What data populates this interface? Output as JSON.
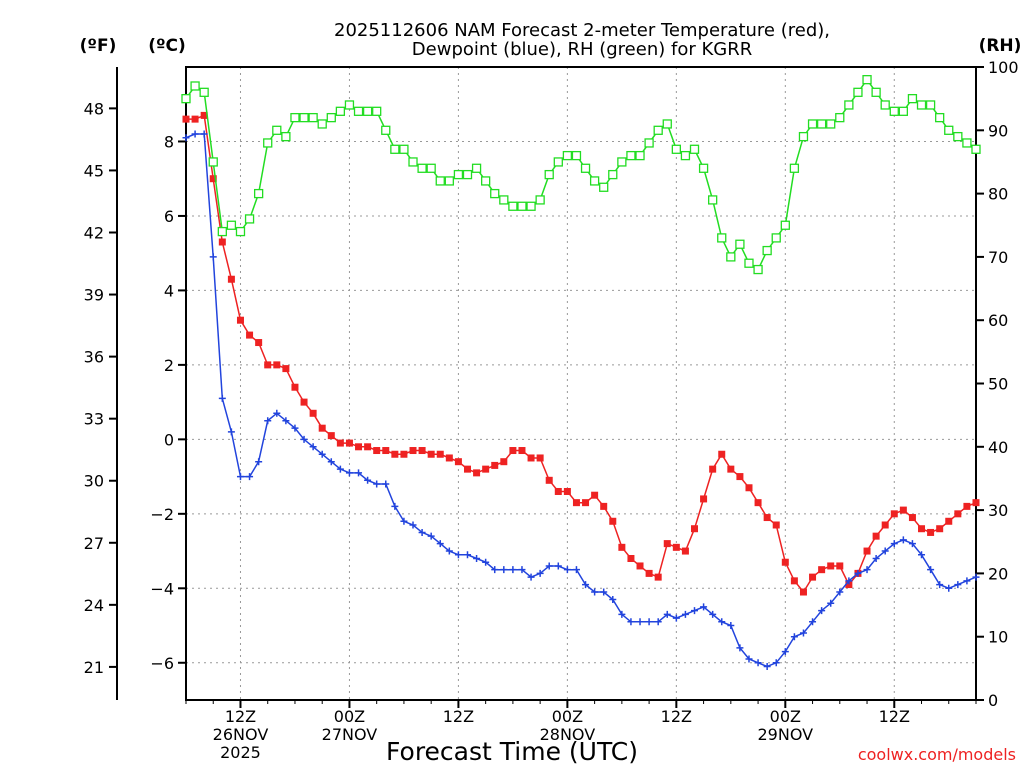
{
  "chart_data": {
    "type": "line",
    "title_line1": "2025112606 NAM Forecast 2-meter Temperature (red),",
    "title_line2": "Dewpoint (blue), RH (green) for KGRR",
    "unit_f": "(ºF)",
    "unit_c": "(ºC)",
    "unit_rh": "(RH)",
    "xlabel": "Forecast Time (UTC)",
    "credit": "coolwx.com/models",
    "x_unit": "forecast hour",
    "xlim": [
      0,
      87
    ],
    "ylim_c": [
      -7,
      10
    ],
    "ylim_rh": [
      0,
      100
    ],
    "grid": true,
    "f_ticks": [
      "21",
      "24",
      "27",
      "30",
      "33",
      "36",
      "39",
      "42",
      "45",
      "48"
    ],
    "c_ticks": [
      "-6",
      "-4",
      "-2",
      "0",
      "2",
      "4",
      "6",
      "8"
    ],
    "rh_ticks": [
      "0",
      "10",
      "20",
      "30",
      "40",
      "50",
      "60",
      "70",
      "80",
      "90",
      "100"
    ],
    "x_ticks": [
      {
        "hour": 6,
        "lines": [
          "12Z",
          "26NOV",
          "2025"
        ]
      },
      {
        "hour": 18,
        "lines": [
          "00Z",
          "27NOV"
        ]
      },
      {
        "hour": 30,
        "lines": [
          "12Z"
        ]
      },
      {
        "hour": 42,
        "lines": [
          "00Z",
          "28NOV"
        ]
      },
      {
        "hour": 54,
        "lines": [
          "12Z"
        ]
      },
      {
        "hour": 66,
        "lines": [
          "00Z",
          "29NOV"
        ]
      },
      {
        "hour": 78,
        "lines": [
          "12Z"
        ]
      }
    ],
    "x": [
      0,
      1,
      2,
      3,
      4,
      5,
      6,
      7,
      8,
      9,
      10,
      11,
      12,
      13,
      14,
      15,
      16,
      17,
      18,
      19,
      20,
      21,
      22,
      23,
      24,
      25,
      26,
      27,
      28,
      29,
      30,
      31,
      32,
      33,
      34,
      35,
      36,
      37,
      38,
      39,
      40,
      41,
      42,
      43,
      44,
      45,
      46,
      47,
      48,
      49,
      50,
      51,
      52,
      53,
      54,
      55,
      56,
      57,
      58,
      59,
      60,
      61,
      62,
      63,
      64,
      65,
      66,
      67,
      68,
      69,
      70,
      71,
      72,
      73,
      74,
      75,
      76,
      77,
      78,
      79,
      80,
      81,
      82,
      83,
      84,
      85,
      86,
      87
    ],
    "series": [
      {
        "name": "Temperature",
        "color": "#ee2222",
        "marker": "filled-square",
        "values_c": [
          8.6,
          8.6,
          8.7,
          7.0,
          5.3,
          4.3,
          3.2,
          2.8,
          2.6,
          2.0,
          2.0,
          1.9,
          1.4,
          1.0,
          0.7,
          0.3,
          0.1,
          -0.1,
          -0.1,
          -0.2,
          -0.2,
          -0.3,
          -0.3,
          -0.4,
          -0.4,
          -0.3,
          -0.3,
          -0.4,
          -0.4,
          -0.5,
          -0.6,
          -0.8,
          -0.9,
          -0.8,
          -0.7,
          -0.6,
          -0.3,
          -0.3,
          -0.5,
          -0.5,
          -1.1,
          -1.4,
          -1.4,
          -1.7,
          -1.7,
          -1.5,
          -1.8,
          -2.2,
          -2.9,
          -3.2,
          -3.4,
          -3.6,
          -3.7,
          -2.8,
          -2.9,
          -3.0,
          -2.4,
          -1.6,
          -0.8,
          -0.4,
          -0.8,
          -1.0,
          -1.3,
          -1.7,
          -2.1,
          -2.3,
          -3.3,
          -3.8,
          -4.1,
          -3.7,
          -3.5,
          -3.4,
          -3.4,
          -3.9,
          -3.6,
          -3.0,
          -2.6,
          -2.3,
          -2.0,
          -1.9,
          -2.1,
          -2.4,
          -2.5,
          -2.4,
          -2.2,
          -2.0,
          -1.8,
          -1.7
        ]
      },
      {
        "name": "Dewpoint",
        "color": "#2244dd",
        "marker": "plus",
        "values_c": [
          8.1,
          8.2,
          8.2,
          4.9,
          1.1,
          0.2,
          -1.0,
          -1.0,
          -0.6,
          0.5,
          0.7,
          0.5,
          0.3,
          0.0,
          -0.2,
          -0.4,
          -0.6,
          -0.8,
          -0.9,
          -0.9,
          -1.1,
          -1.2,
          -1.2,
          -1.8,
          -2.2,
          -2.3,
          -2.5,
          -2.6,
          -2.8,
          -3.0,
          -3.1,
          -3.1,
          -3.2,
          -3.3,
          -3.5,
          -3.5,
          -3.5,
          -3.5,
          -3.7,
          -3.6,
          -3.4,
          -3.4,
          -3.5,
          -3.5,
          -3.9,
          -4.1,
          -4.1,
          -4.3,
          -4.7,
          -4.9,
          -4.9,
          -4.9,
          -4.9,
          -4.7,
          -4.8,
          -4.7,
          -4.6,
          -4.5,
          -4.7,
          -4.9,
          -5.0,
          -5.6,
          -5.9,
          -6.0,
          -6.1,
          -6.0,
          -5.7,
          -5.3,
          -5.2,
          -4.9,
          -4.6,
          -4.4,
          -4.1,
          -3.8,
          -3.6,
          -3.5,
          -3.2,
          -3.0,
          -2.8,
          -2.7,
          -2.8,
          -3.1,
          -3.5,
          -3.9,
          -4.0,
          -3.9,
          -3.8,
          -3.7
        ]
      },
      {
        "name": "RH",
        "color": "#22dd22",
        "marker": "open-square",
        "values_rh": [
          95,
          97,
          96,
          85,
          74,
          75,
          74,
          76,
          80,
          88,
          90,
          89,
          92,
          92,
          92,
          91,
          92,
          93,
          94,
          93,
          93,
          93,
          90,
          87,
          87,
          85,
          84,
          84,
          82,
          82,
          83,
          83,
          84,
          82,
          80,
          79,
          78,
          78,
          78,
          79,
          83,
          85,
          86,
          86,
          84,
          82,
          81,
          83,
          85,
          86,
          86,
          88,
          90,
          91,
          87,
          86,
          87,
          84,
          79,
          73,
          70,
          72,
          69,
          68,
          71,
          73,
          75,
          84,
          89,
          91,
          91,
          91,
          92,
          94,
          96,
          98,
          96,
          94,
          93,
          93,
          95,
          94,
          94,
          92,
          90,
          89,
          88,
          87
        ]
      }
    ]
  }
}
